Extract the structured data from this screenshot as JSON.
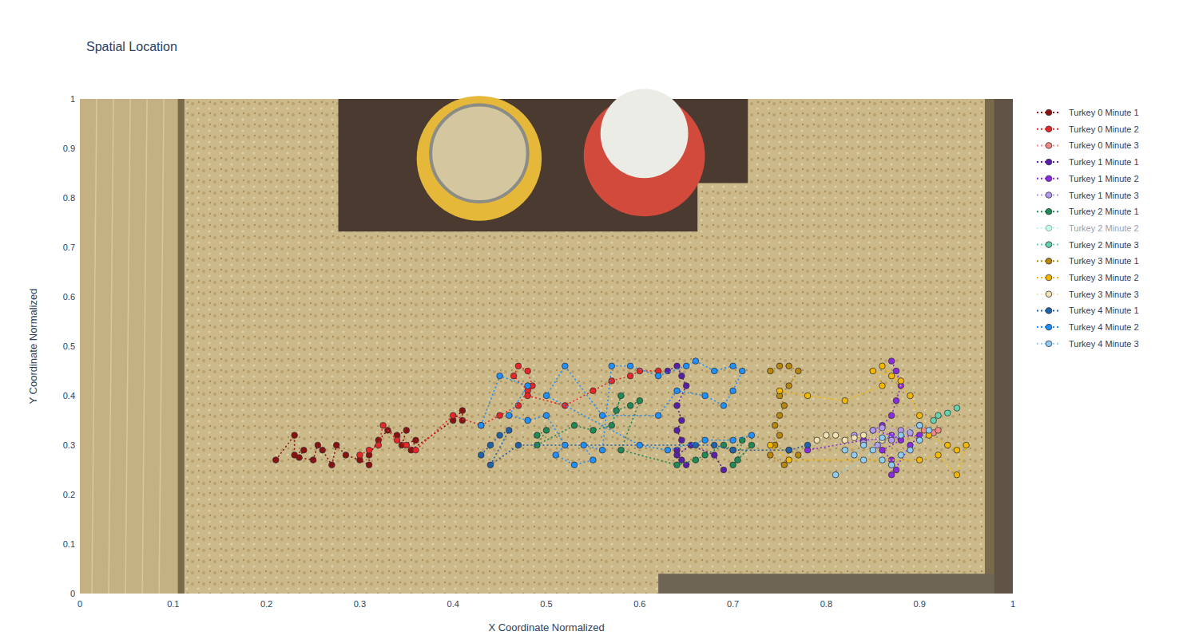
{
  "chart_data": {
    "type": "scatter",
    "title": "Spatial Location",
    "x_label": "X Coordinate Normalized",
    "y_label": "Y Coordinate Normalized",
    "xlim": [
      0,
      1
    ],
    "ylim": [
      0,
      1
    ],
    "xticks": [
      0,
      0.1,
      0.2,
      0.3,
      0.4,
      0.5,
      0.6,
      0.7,
      0.8,
      0.9,
      1
    ],
    "yticks": [
      0,
      0.1,
      0.2,
      0.3,
      0.4,
      0.5,
      0.6,
      0.7,
      0.8,
      0.9,
      1
    ],
    "grid": false,
    "legend": "outside-right",
    "marker": "circle",
    "line_style": "dotted",
    "series": [
      {
        "name": "Turkey 0 Minute 1",
        "color": "#8b1010",
        "x": [
          0.21,
          0.23,
          0.23,
          0.24,
          0.235,
          0.25,
          0.255,
          0.26,
          0.27,
          0.275,
          0.285,
          0.3,
          0.31,
          0.31,
          0.32,
          0.33,
          0.34,
          0.35,
          0.345,
          0.36,
          0.355,
          0.4,
          0.41,
          0.41
        ],
        "values": [
          0.27,
          0.32,
          0.28,
          0.29,
          0.275,
          0.27,
          0.3,
          0.29,
          0.26,
          0.3,
          0.28,
          0.27,
          0.26,
          0.28,
          0.31,
          0.33,
          0.32,
          0.33,
          0.3,
          0.31,
          0.29,
          0.35,
          0.37,
          0.35
        ]
      },
      {
        "name": "Turkey 0 Minute 2",
        "color": "#e8262a",
        "x": [
          0.3,
          0.31,
          0.32,
          0.325,
          0.34,
          0.35,
          0.36,
          0.4,
          0.43,
          0.45,
          0.47,
          0.48,
          0.465,
          0.47,
          0.48,
          0.485,
          0.48,
          0.52,
          0.55,
          0.57,
          0.59,
          0.6,
          0.62
        ],
        "values": [
          0.28,
          0.29,
          0.3,
          0.34,
          0.31,
          0.3,
          0.29,
          0.36,
          0.34,
          0.36,
          0.38,
          0.41,
          0.44,
          0.46,
          0.45,
          0.42,
          0.4,
          0.38,
          0.41,
          0.43,
          0.44,
          0.45,
          0.45
        ]
      },
      {
        "name": "Turkey 0 Minute 3",
        "color": "#f28b86",
        "x": [
          0.905,
          0.915,
          0.92
        ],
        "values": [
          0.33,
          0.325,
          0.33
        ]
      },
      {
        "name": "Turkey 1 Minute 1",
        "color": "#5a1ea8",
        "x": [
          0.63,
          0.64,
          0.645,
          0.65,
          0.64,
          0.645,
          0.64,
          0.645,
          0.64,
          0.645,
          0.65,
          0.64,
          0.655,
          0.68,
          0.69
        ],
        "values": [
          0.45,
          0.46,
          0.44,
          0.42,
          0.38,
          0.35,
          0.33,
          0.31,
          0.29,
          0.27,
          0.26,
          0.28,
          0.3,
          0.28,
          0.25
        ]
      },
      {
        "name": "Turkey 1 Minute 2",
        "color": "#8a2be2",
        "x": [
          0.87,
          0.875,
          0.88,
          0.875,
          0.87,
          0.86,
          0.85,
          0.87,
          0.88,
          0.86,
          0.87,
          0.875,
          0.87,
          0.89,
          0.9,
          0.84,
          0.78
        ],
        "values": [
          0.47,
          0.45,
          0.42,
          0.39,
          0.36,
          0.34,
          0.33,
          0.32,
          0.31,
          0.29,
          0.27,
          0.25,
          0.24,
          0.3,
          0.32,
          0.31,
          0.29
        ]
      },
      {
        "name": "Turkey 1 Minute 3",
        "color": "#b39af0",
        "x": [
          0.83,
          0.85,
          0.86,
          0.88,
          0.89,
          0.87,
          0.855,
          0.84,
          0.9
        ],
        "values": [
          0.32,
          0.33,
          0.335,
          0.33,
          0.325,
          0.31,
          0.3,
          0.305,
          0.34
        ]
      },
      {
        "name": "Turkey 2 Minute 1",
        "color": "#1e8a55",
        "x": [
          0.49,
          0.5,
          0.49,
          0.53,
          0.55,
          0.57,
          0.58,
          0.575,
          0.59,
          0.6,
          0.58,
          0.64,
          0.66,
          0.67,
          0.69,
          0.7,
          0.71,
          0.705,
          0.72,
          0.7
        ],
        "values": [
          0.32,
          0.33,
          0.3,
          0.34,
          0.33,
          0.34,
          0.4,
          0.37,
          0.38,
          0.39,
          0.29,
          0.26,
          0.27,
          0.28,
          0.3,
          0.29,
          0.31,
          0.27,
          0.3,
          0.26
        ]
      },
      {
        "name": "Turkey 2 Minute 2",
        "color": "#7fffd4",
        "x": [],
        "values": []
      },
      {
        "name": "Turkey 2 Minute 3",
        "color": "#66d3b0",
        "x": [
          0.915,
          0.92,
          0.93,
          0.94
        ],
        "values": [
          0.35,
          0.36,
          0.365,
          0.375
        ]
      },
      {
        "name": "Turkey 3 Minute 1",
        "color": "#b8860b",
        "x": [
          0.74,
          0.75,
          0.76,
          0.77,
          0.76,
          0.75,
          0.755,
          0.75,
          0.745,
          0.75,
          0.745,
          0.74,
          0.755,
          0.76,
          0.77
        ],
        "values": [
          0.45,
          0.46,
          0.46,
          0.45,
          0.42,
          0.4,
          0.38,
          0.36,
          0.34,
          0.32,
          0.3,
          0.28,
          0.26,
          0.29,
          0.28
        ]
      },
      {
        "name": "Turkey 3 Minute 2",
        "color": "#f5b800",
        "x": [
          0.75,
          0.78,
          0.82,
          0.86,
          0.85,
          0.87,
          0.88,
          0.86,
          0.89,
          0.9,
          0.91,
          0.93,
          0.94,
          0.95,
          0.94,
          0.92,
          0.9,
          0.76,
          0.74
        ],
        "values": [
          0.41,
          0.4,
          0.39,
          0.42,
          0.45,
          0.44,
          0.43,
          0.46,
          0.4,
          0.36,
          0.32,
          0.3,
          0.29,
          0.3,
          0.24,
          0.28,
          0.27,
          0.27,
          0.3
        ]
      },
      {
        "name": "Turkey 3 Minute 3",
        "color": "#f3e2b3",
        "x": [
          0.79,
          0.8,
          0.81,
          0.82,
          0.83,
          0.84,
          0.86
        ],
        "values": [
          0.31,
          0.32,
          0.32,
          0.31,
          0.315,
          0.32,
          0.31
        ]
      },
      {
        "name": "Turkey 4 Minute 1",
        "color": "#1f63ad",
        "x": [
          0.43,
          0.44,
          0.45,
          0.46,
          0.44,
          0.47,
          0.66,
          0.68,
          0.7,
          0.76,
          0.78
        ],
        "values": [
          0.28,
          0.3,
          0.32,
          0.33,
          0.26,
          0.3,
          0.3,
          0.3,
          0.29,
          0.29,
          0.3
        ]
      },
      {
        "name": "Turkey 4 Minute 2",
        "color": "#1e90ff",
        "x": [
          0.43,
          0.45,
          0.48,
          0.46,
          0.48,
          0.5,
          0.52,
          0.51,
          0.53,
          0.55,
          0.54,
          0.56,
          0.57,
          0.59,
          0.62,
          0.65,
          0.66,
          0.68,
          0.7,
          0.71,
          0.7,
          0.69,
          0.67,
          0.64,
          0.62,
          0.56,
          0.52,
          0.5,
          0.6,
          0.63,
          0.67,
          0.7,
          0.72
        ],
        "values": [
          0.34,
          0.44,
          0.42,
          0.36,
          0.35,
          0.36,
          0.3,
          0.28,
          0.26,
          0.27,
          0.3,
          0.29,
          0.46,
          0.46,
          0.44,
          0.46,
          0.47,
          0.45,
          0.46,
          0.45,
          0.41,
          0.38,
          0.4,
          0.41,
          0.36,
          0.36,
          0.46,
          0.4,
          0.3,
          0.29,
          0.31,
          0.31,
          0.32
        ]
      },
      {
        "name": "Turkey 4 Minute 3",
        "color": "#8fcdf5",
        "x": [
          0.82,
          0.83,
          0.84,
          0.85,
          0.86,
          0.87,
          0.88,
          0.89,
          0.9,
          0.91,
          0.9,
          0.88,
          0.86,
          0.84,
          0.81
        ],
        "values": [
          0.29,
          0.28,
          0.3,
          0.29,
          0.27,
          0.26,
          0.28,
          0.29,
          0.31,
          0.33,
          0.34,
          0.32,
          0.315,
          0.27,
          0.24
        ]
      }
    ]
  }
}
